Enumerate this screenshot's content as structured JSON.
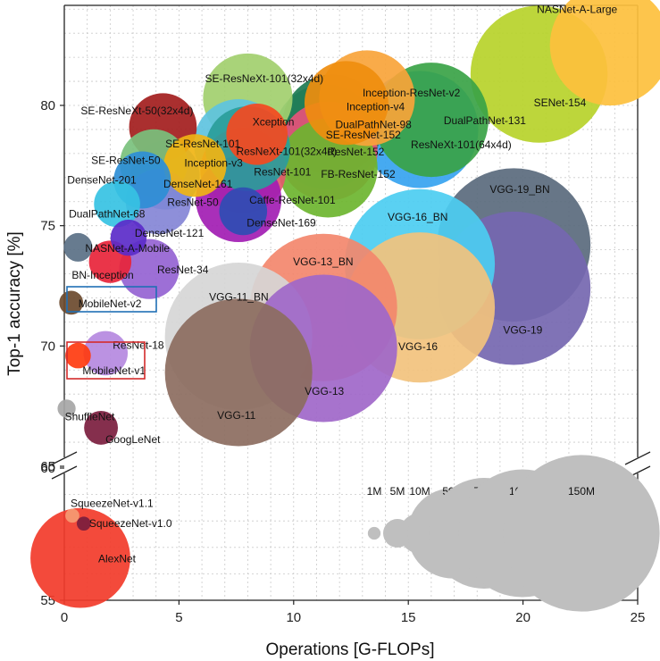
{
  "chart_data": {
    "type": "scatter",
    "title": "",
    "xlabel": "Operations [G-FLOPs]",
    "ylabel": "Top-1 accuracy [%]",
    "xlim": [
      0,
      25
    ],
    "ylim_upper": [
      65,
      85
    ],
    "ylim_lower": [
      55,
      60
    ],
    "axis_break": true,
    "grid": true,
    "x_ticks": [
      "0",
      "5",
      "10",
      "15",
      "20",
      "25"
    ],
    "y_ticks_upper": [
      "65",
      "70",
      "75",
      "80"
    ],
    "y_ticks_lower": [
      "55",
      "60"
    ],
    "size_legend": {
      "labels": [
        "1M",
        "5M",
        "10M",
        "50M",
        "75M",
        "100M",
        "150M"
      ],
      "params_m": [
        1,
        5,
        10,
        50,
        75,
        100,
        150
      ],
      "color": "#bfbfbf"
    },
    "highlights": [
      {
        "model": "MobileNet-v2",
        "color": "#1f6fb5"
      },
      {
        "model": "MobileNet-v1",
        "color": "#d42b2b"
      }
    ],
    "points": [
      {
        "label": "NASNet-A-Large",
        "x": 23.8,
        "y": 82.5,
        "params_m": 89,
        "color": "#fdc03d"
      },
      {
        "label": "SENet-154",
        "x": 20.7,
        "y": 81.3,
        "params_m": 115,
        "color": "#b7d22a"
      },
      {
        "label": "SE-ResNeXt-101(32x4d)",
        "x": 8.0,
        "y": 80.3,
        "params_m": 49,
        "color": "#a2cf6e"
      },
      {
        "label": "Inception-ResNet-v2",
        "x": 13.2,
        "y": 80.3,
        "params_m": 56,
        "color": "#f9a43a"
      },
      {
        "label": "Inception-v4",
        "x": 12.3,
        "y": 80.1,
        "params_m": 43,
        "color": "#ef8d0e"
      },
      {
        "label": "DualPathNet-131",
        "x": 16.0,
        "y": 79.4,
        "params_m": 80,
        "color": "#3aa347"
      },
      {
        "label": "DualPathNet-98",
        "x": 11.7,
        "y": 79.2,
        "params_m": 62,
        "color": "#1e7a52"
      },
      {
        "label": "SE-ResNeXt-50(32x4d)",
        "x": 4.3,
        "y": 79.1,
        "params_m": 28,
        "color": "#a31d1d"
      },
      {
        "label": "ResNeXt-101(64x4d)",
        "x": 15.5,
        "y": 79.0,
        "params_m": 84,
        "color": "#36a3f0"
      },
      {
        "label": "Xception",
        "x": 8.4,
        "y": 78.8,
        "params_m": 23,
        "color": "#f5491f"
      },
      {
        "label": "SE-ResNet-152",
        "x": 11.4,
        "y": 78.7,
        "params_m": 67,
        "color": "#34a294"
      },
      {
        "label": "SE-ResNet-101",
        "x": 7.6,
        "y": 78.4,
        "params_m": 49,
        "color": "#5ec3df"
      },
      {
        "label": "ResNeXt-101(32x4d)",
        "x": 8.0,
        "y": 78.2,
        "params_m": 44,
        "color": "#2a9d9a"
      },
      {
        "label": "ResNet-152",
        "x": 11.5,
        "y": 78.1,
        "params_m": 60,
        "color": "#e7517a"
      },
      {
        "label": "SE-ResNet-50",
        "x": 3.9,
        "y": 77.6,
        "params_m": 28,
        "color": "#79c17d"
      },
      {
        "label": "Inception-v3",
        "x": 5.7,
        "y": 77.5,
        "params_m": 24,
        "color": "#f0b413"
      },
      {
        "label": "FB-ResNet-152",
        "x": 11.5,
        "y": 77.4,
        "params_m": 60,
        "color": "#6cb52f"
      },
      {
        "label": "ResNet-101",
        "x": 7.8,
        "y": 77.3,
        "params_m": 45,
        "color": "#e35a6a"
      },
      {
        "label": "DenseNet-161",
        "x": 4.4,
        "y": 77.1,
        "params_m": 29,
        "color": "#3b9ee0"
      },
      {
        "label": "DenseNet-201",
        "x": 3.4,
        "y": 76.9,
        "params_m": 20,
        "color": "#2e8ed6"
      },
      {
        "label": "Caffe-ResNet-101",
        "x": 7.6,
        "y": 76.1,
        "params_m": 45,
        "color": "#a21db3"
      },
      {
        "label": "ResNet-50",
        "x": 4.1,
        "y": 76.0,
        "params_m": 26,
        "color": "#8486d6"
      },
      {
        "label": "DualPathNet-68",
        "x": 2.3,
        "y": 75.9,
        "params_m": 13,
        "color": "#36c2e3"
      },
      {
        "label": "DenseNet-169",
        "x": 7.8,
        "y": 75.6,
        "params_m": 14,
        "color": "#2f4db3"
      },
      {
        "label": "DenseNet-121",
        "x": 2.8,
        "y": 74.5,
        "params_m": 8,
        "color": "#5b2bc9"
      },
      {
        "label": "NASNet-A-Mobile",
        "x": 0.6,
        "y": 74.1,
        "params_m": 5,
        "color": "#5a7085"
      },
      {
        "label": "VGG-19_BN",
        "x": 19.6,
        "y": 74.2,
        "params_m": 144,
        "color": "#5a6a7d"
      },
      {
        "label": "VGG-16_BN",
        "x": 15.5,
        "y": 73.4,
        "params_m": 138,
        "color": "#4ccdf1"
      },
      {
        "label": "BN-Inception",
        "x": 2.0,
        "y": 73.5,
        "params_m": 11,
        "color": "#e8243a"
      },
      {
        "label": "ResNet-34",
        "x": 3.7,
        "y": 73.2,
        "params_m": 22,
        "color": "#9563d3"
      },
      {
        "label": "VGG-19",
        "x": 19.6,
        "y": 72.4,
        "params_m": 144,
        "color": "#7567b0"
      },
      {
        "label": "MobileNet-v2",
        "x": 0.3,
        "y": 71.8,
        "params_m": 3.5,
        "color": "#6b4a2e"
      },
      {
        "label": "VGG-13_BN",
        "x": 11.3,
        "y": 71.6,
        "params_m": 133,
        "color": "#f3876d"
      },
      {
        "label": "VGG-16",
        "x": 15.5,
        "y": 71.6,
        "params_m": 138,
        "color": "#f2c27d"
      },
      {
        "label": "VGG-11_BN",
        "x": 7.6,
        "y": 70.4,
        "params_m": 133,
        "color": "#d6d6d6"
      },
      {
        "label": "VGG-13",
        "x": 11.3,
        "y": 69.9,
        "params_m": 133,
        "color": "#a067c9"
      },
      {
        "label": "ResNet-18",
        "x": 1.8,
        "y": 69.7,
        "params_m": 12,
        "color": "#b589e0"
      },
      {
        "label": "MobileNet-v1",
        "x": 0.6,
        "y": 69.6,
        "params_m": 4,
        "color": "#ff3b0f"
      },
      {
        "label": "VGG-11",
        "x": 7.6,
        "y": 68.9,
        "params_m": 133,
        "color": "#8c6c60"
      },
      {
        "label": "ShuffleNet",
        "x": 0.1,
        "y": 67.4,
        "params_m": 2,
        "color": "#a6a6a6"
      },
      {
        "label": "GoogLeNet",
        "x": 1.6,
        "y": 66.6,
        "params_m": 7,
        "color": "#7b1d3e"
      },
      {
        "label": "SqueezeNet-v1.1",
        "x": 0.35,
        "y": 58.2,
        "params_m": 1.2,
        "color": "#f59a73"
      },
      {
        "label": "SqueezeNet-v1.0",
        "x": 0.85,
        "y": 57.9,
        "params_m": 1.2,
        "color": "#7b1d3e"
      },
      {
        "label": "AlexNet",
        "x": 0.7,
        "y": 56.6,
        "params_m": 61,
        "color": "#f23b2a"
      }
    ]
  }
}
